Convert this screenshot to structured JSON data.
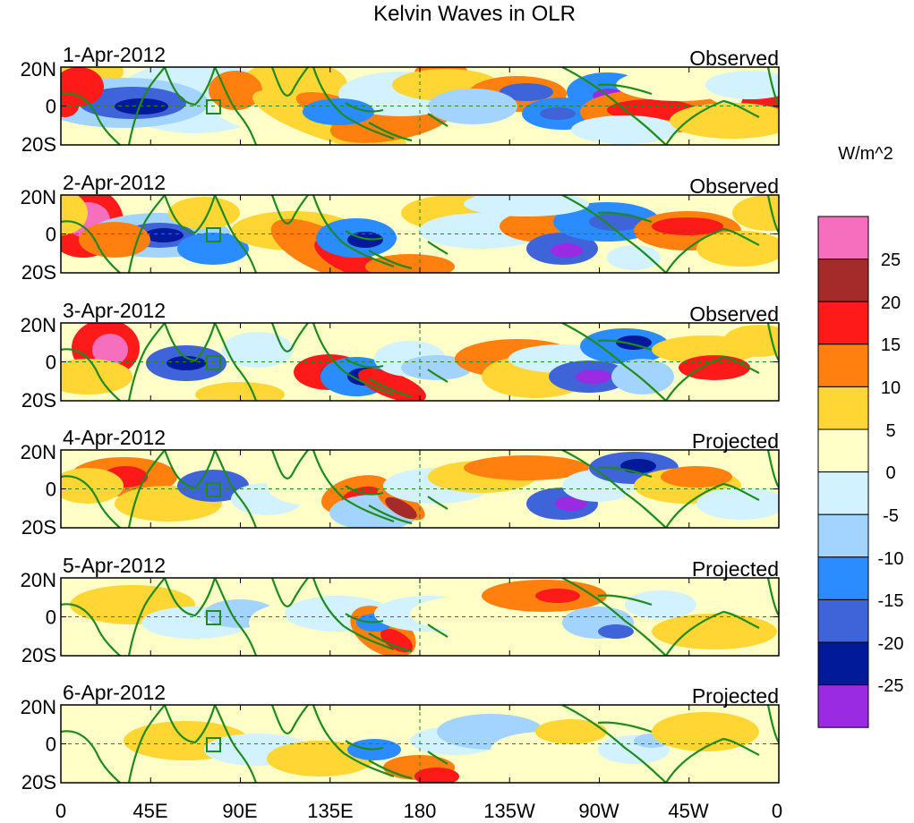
{
  "figure": {
    "title": "Kelvin Waves in OLR",
    "x_tick_labels": [
      "0",
      "45E",
      "90E",
      "135E",
      "180",
      "135W",
      "90W",
      "45W",
      "0"
    ],
    "y_tick_labels": [
      "20N",
      "0",
      "20S"
    ]
  },
  "panels": [
    {
      "date": "1-Apr-2012",
      "status": "Observed"
    },
    {
      "date": "2-Apr-2012",
      "status": "Observed"
    },
    {
      "date": "3-Apr-2012",
      "status": "Observed"
    },
    {
      "date": "4-Apr-2012",
      "status": "Projected"
    },
    {
      "date": "5-Apr-2012",
      "status": "Projected"
    },
    {
      "date": "6-Apr-2012",
      "status": "Projected"
    }
  ],
  "colorbar": {
    "units": "W/m^2",
    "tick_labels": [
      "25",
      "20",
      "15",
      "10",
      "5",
      "0",
      "-5",
      "-10",
      "-15",
      "-20",
      "-25"
    ],
    "colors_top_to_bottom": [
      "#f56fbe",
      "#a52a2a",
      "#ff1a1a",
      "#ff7f0f",
      "#ffd633",
      "#ffffc8",
      "#d2f2ff",
      "#a3d4ff",
      "#2b8cff",
      "#3f63d8",
      "#001a99",
      "#9a2be2"
    ]
  },
  "colors": {
    "coastline": "#1f8a1f",
    "zero_line": "#1f8a1f"
  }
}
